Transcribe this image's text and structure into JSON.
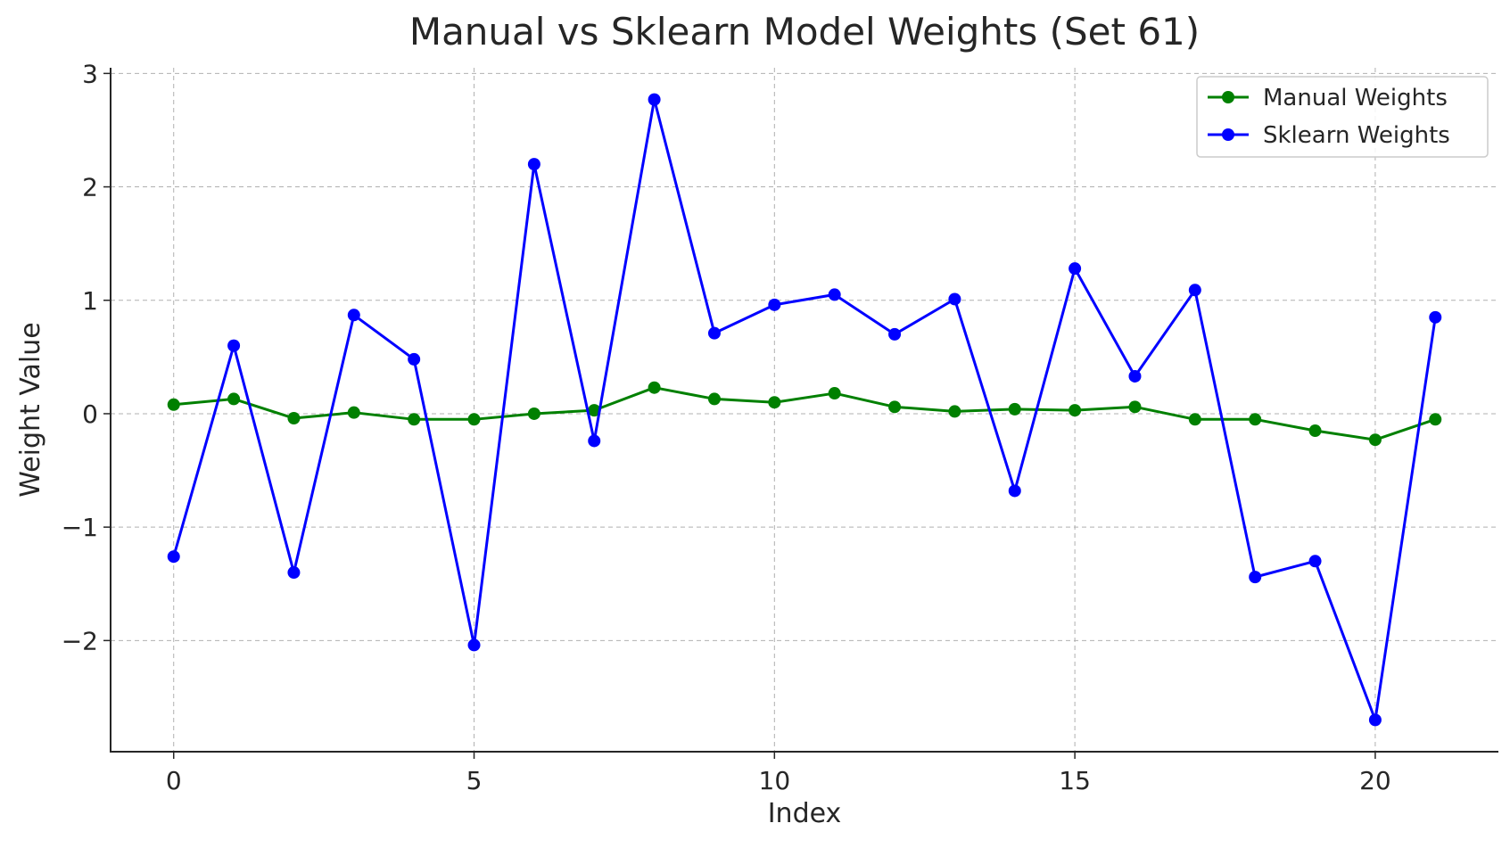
{
  "chart_data": {
    "type": "line",
    "title": "Manual vs Sklearn Model Weights (Set 61)",
    "xlabel": "Index",
    "ylabel": "Weight Value",
    "xlim": [
      -1.05,
      22.05
    ],
    "ylim": [
      -2.98,
      3.05
    ],
    "x_ticks": [
      0,
      5,
      10,
      15,
      20
    ],
    "y_ticks": [
      -2,
      -1,
      0,
      1,
      2,
      3
    ],
    "y_tick_labels": [
      "−2",
      "−1",
      "0",
      "1",
      "2",
      "3"
    ],
    "grid": true,
    "legend_position": "top-right",
    "x": [
      0,
      1,
      2,
      3,
      4,
      5,
      6,
      7,
      8,
      9,
      10,
      11,
      12,
      13,
      14,
      15,
      16,
      17,
      18,
      19,
      20,
      21
    ],
    "series": [
      {
        "name": "Manual Weights",
        "color": "#008000",
        "marker": "circle",
        "values": [
          0.08,
          0.13,
          -0.04,
          0.01,
          -0.05,
          -0.05,
          0.0,
          0.03,
          0.23,
          0.13,
          0.1,
          0.18,
          0.06,
          0.02,
          0.04,
          0.03,
          0.06,
          -0.05,
          -0.05,
          -0.15,
          -0.23,
          -0.05
        ]
      },
      {
        "name": "Sklearn Weights",
        "color": "#0000ff",
        "marker": "circle",
        "values": [
          -1.26,
          0.6,
          -1.4,
          0.87,
          0.48,
          -2.04,
          2.2,
          -0.24,
          2.77,
          0.71,
          0.96,
          1.05,
          0.7,
          1.01,
          -0.68,
          1.28,
          0.33,
          1.09,
          -1.44,
          -1.3,
          -2.7,
          0.85
        ]
      }
    ]
  }
}
